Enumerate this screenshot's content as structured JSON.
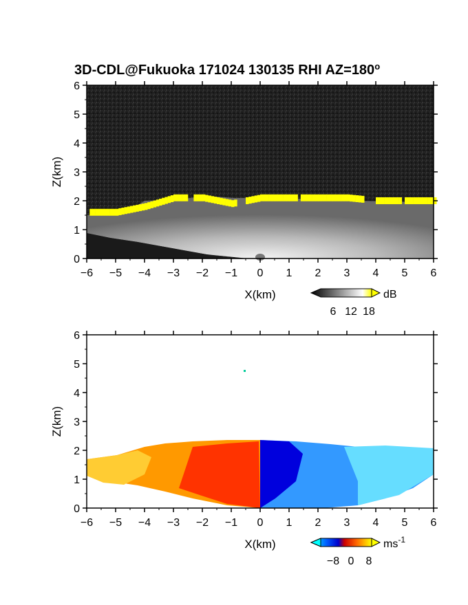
{
  "chart_data": [
    {
      "type": "heatmap",
      "title": "3D-CDL@Fukuoka 171024 130135 RHI AZ=180",
      "title_superscript": "o",
      "xlabel": "X(km)",
      "ylabel": "Z(km)",
      "xlim": [
        -6,
        6
      ],
      "ylim": [
        0,
        6
      ],
      "xticks": [
        "-6",
        "-5",
        "-4",
        "-3",
        "-2",
        "-1",
        "0",
        "1",
        "2",
        "3",
        "4",
        "5",
        "6"
      ],
      "yticks": [
        "0",
        "1",
        "2",
        "3",
        "4",
        "5",
        "6"
      ],
      "colorbar": {
        "unit": "dB",
        "ticks": [
          "6",
          "12",
          "18"
        ],
        "colors": [
          "#000000",
          "#ffffff",
          "#ffff00"
        ]
      },
      "cloud_base_km_by_x": {
        "x": [
          -6,
          -5,
          -4,
          -3,
          -2,
          -1,
          0,
          1,
          2,
          3,
          4,
          5,
          6
        ],
        "z": [
          1.6,
          1.6,
          1.8,
          2.1,
          2.1,
          1.9,
          2.1,
          2.1,
          2.1,
          2.1,
          2.0,
          2.0,
          2.0
        ]
      },
      "grid": false
    },
    {
      "type": "heatmap",
      "xlabel": "X(km)",
      "ylabel": "Z(km)",
      "xlim": [
        -6,
        6
      ],
      "ylim": [
        0,
        6
      ],
      "xticks": [
        "-6",
        "-5",
        "-4",
        "-3",
        "-2",
        "-1",
        "0",
        "1",
        "2",
        "3",
        "4",
        "5",
        "6"
      ],
      "yticks": [
        "0",
        "1",
        "2",
        "3",
        "4",
        "5",
        "6"
      ],
      "colorbar": {
        "unit": "ms",
        "unit_superscript": "-1",
        "ticks": [
          "−8",
          "0",
          "8"
        ],
        "colors": [
          "#00ffff",
          "#0000ff",
          "#ff0000",
          "#ffff00"
        ]
      },
      "velocity_sign_change_x_km": 0,
      "grid": false
    }
  ]
}
